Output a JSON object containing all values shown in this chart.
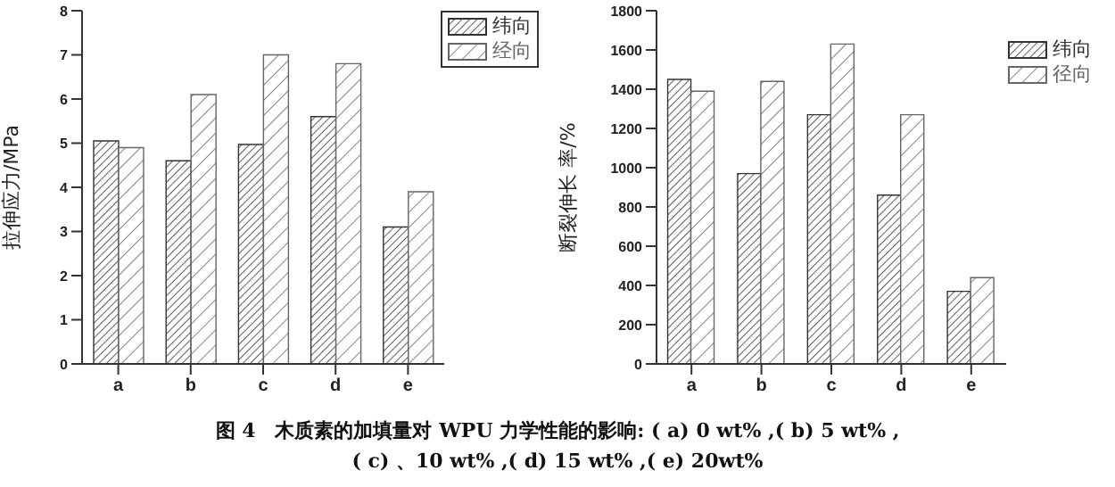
{
  "chart_data": [
    {
      "type": "bar",
      "ylabel": "拉伸应力/MPa",
      "categories": [
        "a",
        "b",
        "c",
        "d",
        "e"
      ],
      "series": [
        {
          "name": "纬向",
          "color": "#333333",
          "values": [
            5.05,
            4.6,
            4.97,
            5.6,
            3.1
          ]
        },
        {
          "name": "经向",
          "color": "#666666",
          "values": [
            4.9,
            6.1,
            7.0,
            6.8,
            3.9
          ]
        }
      ],
      "ylim": [
        0,
        8
      ],
      "yticks": [
        0,
        1,
        2,
        3,
        4,
        5,
        6,
        7,
        8
      ],
      "grid": false,
      "legend": "top right",
      "annotations": [
        "图 4　木质素的加填量对 WPU 力学性能的影响: ( a) 0  wt% ,( b) 5  wt% ,",
        "( c) 、10  wt% ,( d) 15  wt% ,( e) 20wt%"
      ]
    },
    {
      "type": "bar",
      "ylabel": "断裂伸长 率/%",
      "categories": [
        "a",
        "b",
        "c",
        "d",
        "e"
      ],
      "series": [
        {
          "name": "纬向",
          "color": "#333333",
          "values": [
            1450,
            970,
            1270,
            860,
            370
          ]
        },
        {
          "name": "径向",
          "color": "#666666",
          "values": [
            1390,
            1440,
            1630,
            1270,
            440
          ]
        }
      ],
      "ylim": [
        0,
        1800
      ],
      "yticks": [
        0,
        200,
        400,
        600,
        800,
        1000,
        1200,
        1400,
        1600,
        1800
      ],
      "grid": false,
      "legend": "top right"
    }
  ]
}
